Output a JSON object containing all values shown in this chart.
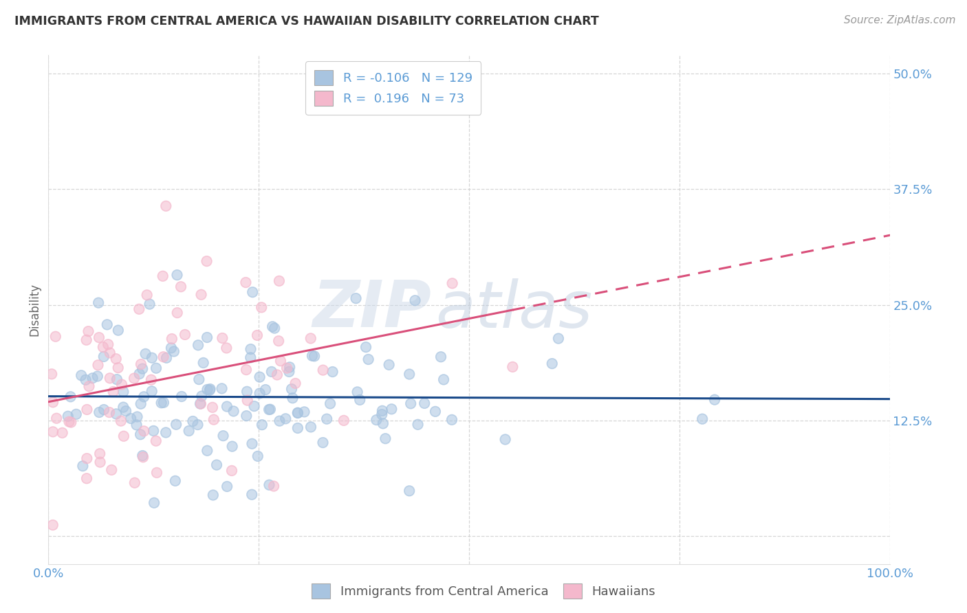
{
  "title": "IMMIGRANTS FROM CENTRAL AMERICA VS HAWAIIAN DISABILITY CORRELATION CHART",
  "source": "Source: ZipAtlas.com",
  "ylabel": "Disability",
  "blue_light": "#a8c4e0",
  "pink_light": "#f4b8cc",
  "trend_blue": "#1a4a8a",
  "trend_pink": "#d94f7a",
  "watermark_zip": "ZIP",
  "watermark_atlas": "atlas",
  "background": "#ffffff",
  "grid_color": "#cccccc",
  "axis_color": "#5b9bd5",
  "title_color": "#333333",
  "n_blue": 129,
  "n_pink": 73,
  "R_blue": -0.106,
  "R_pink": 0.196,
  "xlim": [
    0.0,
    1.0
  ],
  "ylim": [
    -0.03,
    0.52
  ],
  "ytick_vals": [
    0.0,
    0.125,
    0.25,
    0.375,
    0.5
  ],
  "ytick_labels": [
    "",
    "12.5%",
    "25.0%",
    "37.5%",
    "50.0%"
  ]
}
